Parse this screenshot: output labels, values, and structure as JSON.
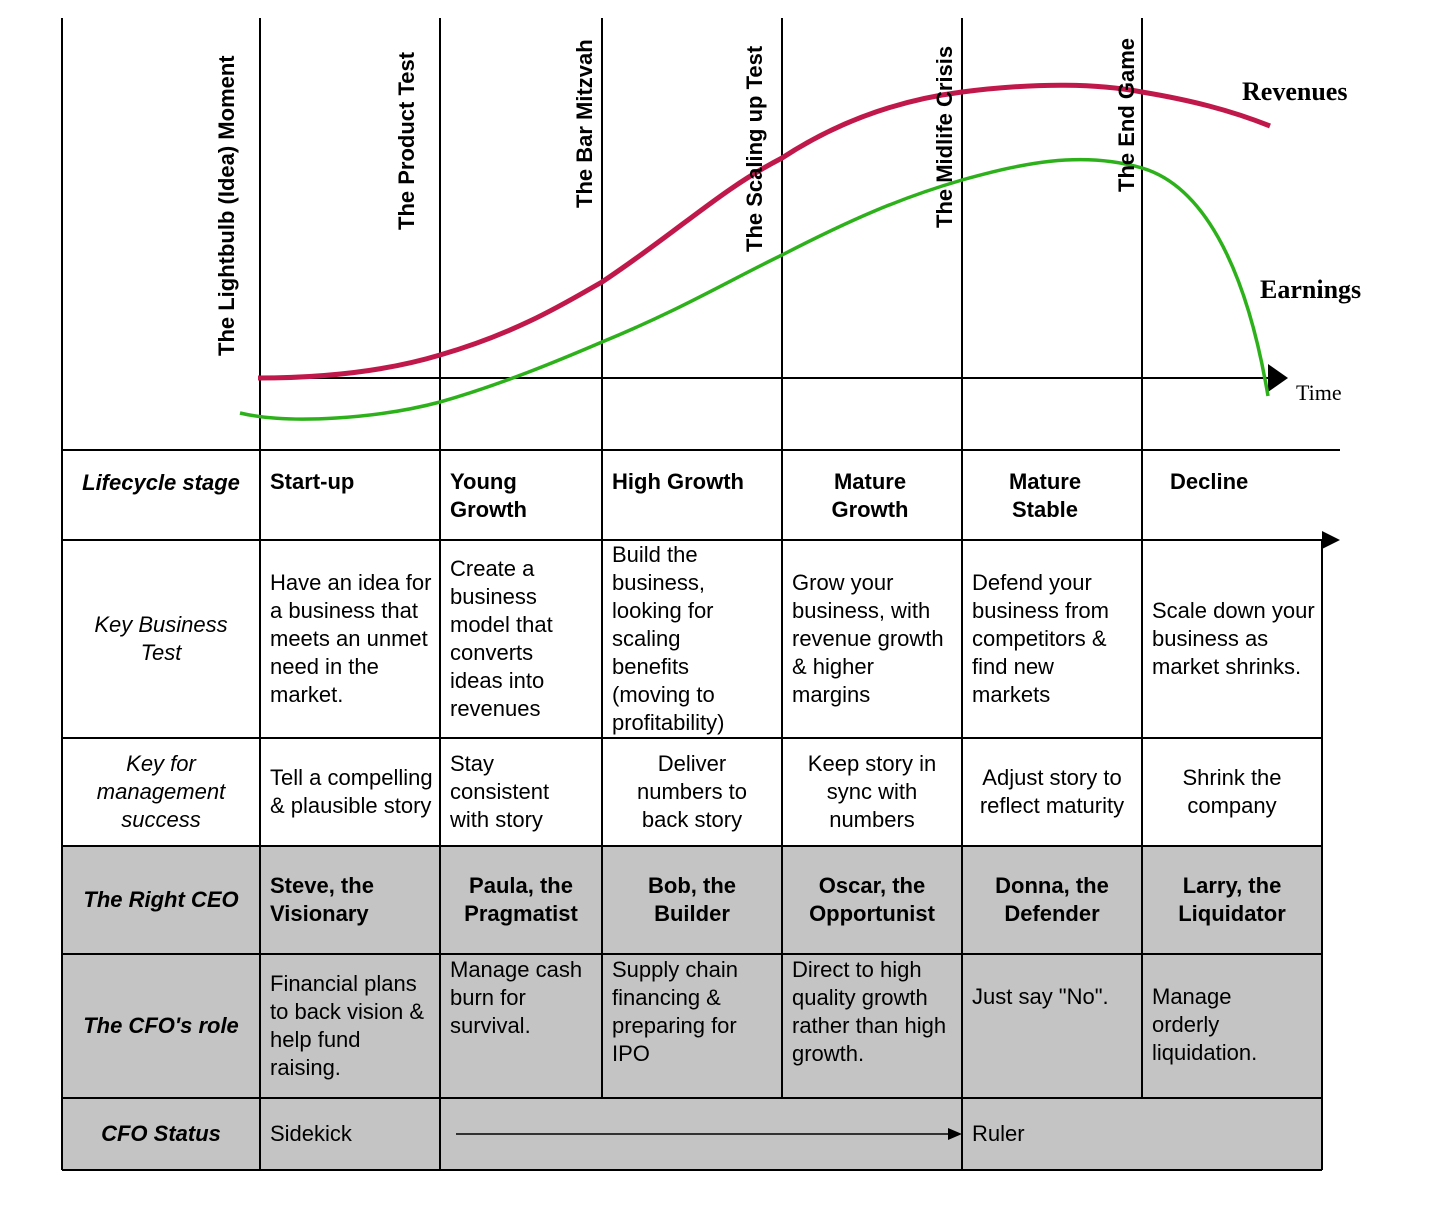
{
  "milestones": [
    "The Lightbulb (Idea) Moment",
    "The Product Test",
    "The Bar Mitzvah",
    "The Scaling up Test",
    "The Midlife Crisis",
    "The End Game"
  ],
  "curves": {
    "revenues_label": "Revenues",
    "earnings_label": "Earnings",
    "axis_label": "Time",
    "revenues_color": "#c0184a",
    "earnings_color": "#2db11b"
  },
  "table": {
    "row_labels": {
      "stage": "Lifecycle stage",
      "test": "Key Business Test",
      "key": "Key for management success",
      "ceo": "The Right CEO",
      "cfo_role": "The CFO's role",
      "cfo_status": "CFO Status"
    },
    "stages": [
      "Start-up",
      "Young Growth",
      "High Growth",
      "Mature Growth",
      "Mature Stable",
      "Decline"
    ],
    "business_tests": [
      "Have an idea for a business that meets an unmet need in the market.",
      "Create a business model that converts ideas into revenues",
      "Build the business, looking for scaling benefits (moving to profitability)",
      "Grow your business, with revenue growth & higher margins",
      "Defend your business from competitors & find new markets",
      "Scale down your business as market shrinks."
    ],
    "management_keys": [
      "Tell a compelling & plausible story",
      "Stay consistent with story",
      "Deliver numbers to back story",
      "Keep story in sync with numbers",
      "Adjust story to reflect maturity",
      "Shrink the company"
    ],
    "ceos": [
      "Steve, the Visionary",
      "Paula, the Pragmatist",
      "Bob, the Builder",
      "Oscar, the Opportunist",
      "Donna, the Defender",
      "Larry, the Liquidator"
    ],
    "cfo_roles": [
      "Financial plans to back vision & help fund raising.",
      "Manage cash burn for survival.",
      "Supply chain financing & preparing for IPO",
      "Direct to high quality growth rather than high growth.",
      "Just say \"No\".",
      "Manage orderly liquidation."
    ],
    "cfo_status_start": "Sidekick",
    "cfo_status_end": "Ruler"
  },
  "colors": {
    "grey_fill": "#c4c4c4",
    "line": "#000000"
  }
}
